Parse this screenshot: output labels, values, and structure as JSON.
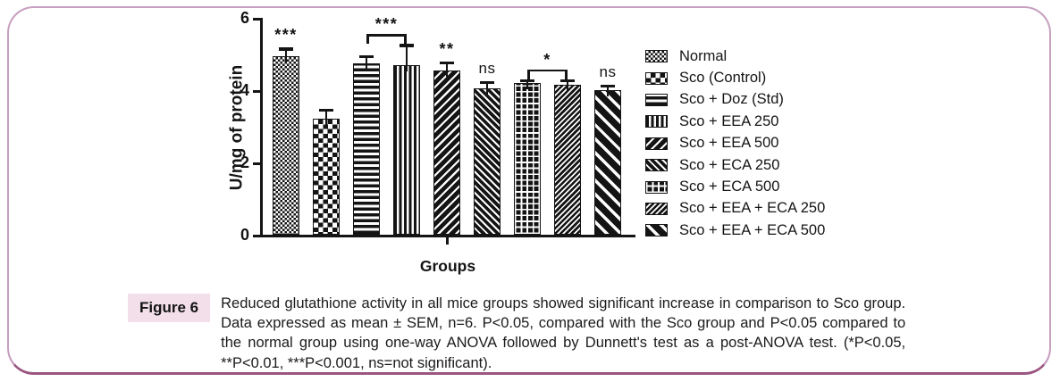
{
  "figure": {
    "label": "Figure 6",
    "caption": "Reduced glutathione activity in all mice groups showed significant increase in comparison to Sco group. Data expressed as mean ± SEM, n=6. P<0.05, compared with the Sco group and P<0.05 compared to the normal group using one-way ANOVA followed by Dunnett's test as a post-ANOVA test. (*P<0.05, **P<0.01, ***P<0.001, ns=not significant)."
  },
  "colors": {
    "ink": "#141414",
    "frame_border": "#c79fc0",
    "frame_border_bottom": "#9a5680",
    "figure_label_bg": "#f3dfe9"
  },
  "chart_data": {
    "type": "bar",
    "title": "",
    "xlabel": "Groups",
    "ylabel": "U/mg of protein",
    "ylim": [
      0,
      6
    ],
    "yticks": [
      0,
      2,
      4,
      6
    ],
    "grid": false,
    "legend_position": "right",
    "categories": [
      "Normal",
      "Sco (Control)",
      "Sco + Doz (Std)",
      "Sco + EEA 250",
      "Sco + EEA 500",
      "Sco + ECA 250",
      "Sco + ECA 500",
      "Sco + EEA + ECA 250",
      "Sco + EEA + ECA 500"
    ],
    "values": [
      4.95,
      3.2,
      4.75,
      4.7,
      4.55,
      4.05,
      4.2,
      4.15,
      4.0
    ],
    "errors": [
      0.2,
      0.25,
      0.2,
      0.55,
      0.22,
      0.18,
      0.08,
      0.12,
      0.12
    ],
    "error_type": "SEM",
    "patterns": [
      "checker-fine",
      "checker-large",
      "hlines",
      "vlines",
      "diag-up",
      "diag-down",
      "grid",
      "diag-up-fine",
      "diag-down-wide"
    ],
    "annotations": {
      "bar_labels": [
        {
          "bar": 0,
          "text": "***"
        },
        {
          "bar": 4,
          "text": "**"
        },
        {
          "bar": 5,
          "text": "ns"
        },
        {
          "bar": 8,
          "text": "ns"
        }
      ],
      "brackets": [
        {
          "from": 2,
          "to": 3,
          "text": "***"
        },
        {
          "from": 6,
          "to": 7,
          "text": "*"
        }
      ]
    }
  }
}
